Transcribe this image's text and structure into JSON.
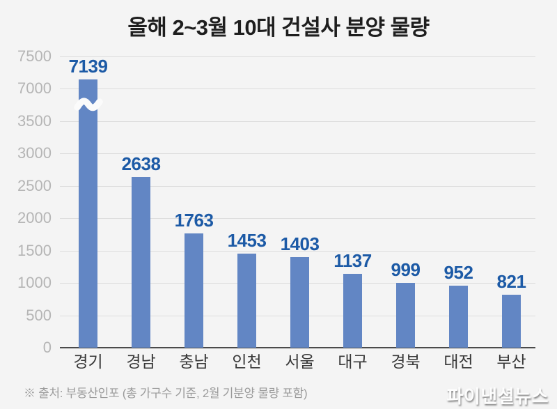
{
  "title": "올해 2~3월 10대 건설사 분양 물량",
  "chart_data": {
    "type": "bar",
    "categories": [
      "경기",
      "경남",
      "충남",
      "인천",
      "서울",
      "대구",
      "경북",
      "대전",
      "부산"
    ],
    "values": [
      7139,
      2638,
      1763,
      1453,
      1403,
      1137,
      999,
      952,
      821
    ],
    "y_ticks": [
      0,
      500,
      1000,
      1500,
      2000,
      2500,
      3000,
      3500,
      7000,
      7500
    ],
    "ylim": [
      0,
      7500
    ],
    "axis_break": {
      "after": 3500,
      "resume": 7000,
      "marker": "wave",
      "applies_to": "경기"
    },
    "grid": true,
    "legend": false,
    "xlabel": "",
    "ylabel": "",
    "colors": {
      "background": "#f4f4f4",
      "bar": "#6286c4",
      "value_label": "#1c5aa6",
      "grid_line": "#dcdcdc",
      "axis_line": "#4a4a4a",
      "tick_label": "#b5b5b5",
      "category_label": "#383838",
      "break_gap": "#fbfbfb"
    }
  },
  "footer": {
    "source_note": "※ 출처: 부동산인포 (총 가구수 기준, 2월 기분양 물량 포함)"
  },
  "watermark": "파이낸셜뉴스"
}
